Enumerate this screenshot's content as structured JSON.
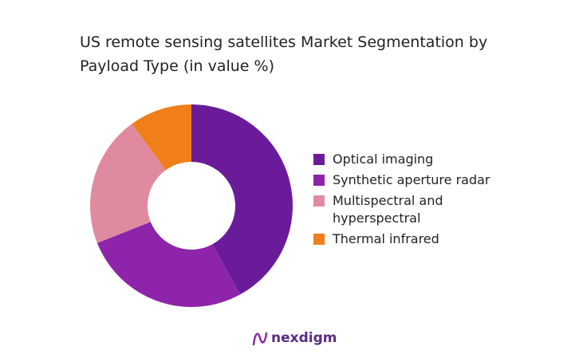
{
  "chart_data": {
    "type": "pie",
    "title": "US remote sensing satellites Market Segmentation by Payload Type (in value %)",
    "categories": [
      "Optical imaging",
      "Synthetic aperture radar",
      "Multispectral and hyperspectral",
      "Thermal infrared"
    ],
    "values": [
      42,
      27,
      21,
      10
    ],
    "colors": [
      "#6a1b9a",
      "#8e24aa",
      "#e08aa0",
      "#f07f1a"
    ],
    "legend": "right"
  },
  "brand": "nexdigm"
}
